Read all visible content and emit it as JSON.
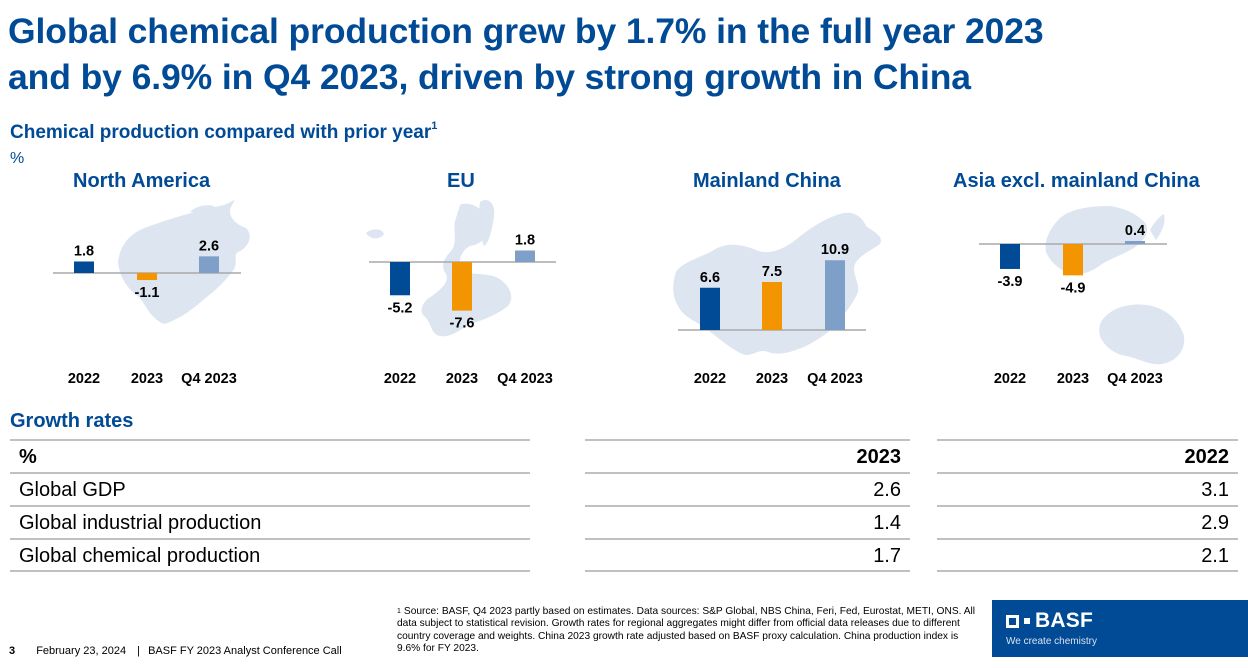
{
  "slide": {
    "title_line1": "Global chemical production grew by 1.7% in the full year 2023",
    "title_line2": "and by 6.9% in Q4 2023, driven by strong growth in China",
    "subtitle": "Chemical production compared with prior year",
    "subtitle_footnote_marker": "1",
    "unit": "%"
  },
  "colors": {
    "brand_blue": "#004a96",
    "bar_2022": "#004a96",
    "bar_2023": "#f39500",
    "bar_q4_2023": "#7ea0c8",
    "map_fill": "#dde5f0",
    "baseline": "#a9a9a9"
  },
  "chart_data": [
    {
      "type": "bar",
      "title": "North America",
      "categories": [
        "2022",
        "2023",
        "Q4 2023"
      ],
      "values": [
        1.8,
        -1.1,
        2.6
      ],
      "value_labels": [
        "1.8",
        "-1.1",
        "2.6"
      ],
      "ylabel": "%",
      "background": "map-north-america"
    },
    {
      "type": "bar",
      "title": "EU",
      "categories": [
        "2022",
        "2023",
        "Q4 2023"
      ],
      "values": [
        -5.2,
        -7.6,
        1.8
      ],
      "value_labels": [
        "-5.2",
        "-7.6",
        "1.8"
      ],
      "ylabel": "%",
      "background": "map-europe"
    },
    {
      "type": "bar",
      "title": "Mainland China",
      "categories": [
        "2022",
        "2023",
        "Q4 2023"
      ],
      "values": [
        6.6,
        7.5,
        10.9
      ],
      "value_labels": [
        "6.6",
        "7.5",
        "10.9"
      ],
      "ylabel": "%",
      "background": "map-china"
    },
    {
      "type": "bar",
      "title": "Asia excl. mainland China",
      "categories": [
        "2022",
        "2023",
        "Q4 2023"
      ],
      "values": [
        -3.9,
        -4.9,
        0.4
      ],
      "value_labels": [
        "-3.9",
        "-4.9",
        "0.4"
      ],
      "ylabel": "%",
      "background": "map-asia-pacific"
    }
  ],
  "growth_rates": {
    "title": "Growth rates",
    "header": {
      "label": "%",
      "col_2023": "2023",
      "col_2022": "2022"
    },
    "rows": [
      {
        "label": "Global GDP",
        "v2023": "2.6",
        "v2022": "3.1"
      },
      {
        "label": "Global industrial production",
        "v2023": "1.4",
        "v2022": "2.9"
      },
      {
        "label": "Global chemical production",
        "v2023": "1.7",
        "v2022": "2.1"
      }
    ]
  },
  "footnote": {
    "marker": "1",
    "text": "Source: BASF, Q4 2023 partly based on estimates. Data sources: S&P Global, NBS China, Feri, Fed, Eurostat, METI, ONS. All data subject to statistical revision. Growth rates for regional aggregates might differ from official data releases due to different country coverage and weights. China 2023 growth rate adjusted based on BASF proxy calculation. China production index is 9.6% for FY 2023."
  },
  "footer": {
    "page_number": "3",
    "date": "February 23, 2024",
    "separator": "|",
    "event": "BASF FY 2023 Analyst Conference Call"
  },
  "logo": {
    "brand": "BASF",
    "tagline": "We create chemistry"
  }
}
